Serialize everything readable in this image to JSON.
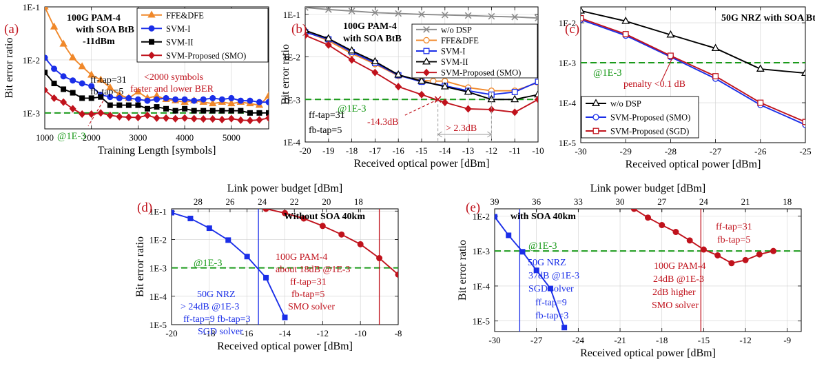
{
  "colors": {
    "red": "#c0121c",
    "blue": "#1a2ee8",
    "black": "#000000",
    "orange": "#f0882a",
    "gray": "#8c8c8c",
    "green": "#1a9a1a"
  },
  "chart_data": [
    {
      "id": "a",
      "type": "line",
      "panel_label": "(a)",
      "xlabel": "Training Length [symbols]",
      "ylabel": "Bit error ratio",
      "xlim": [
        1000,
        5800
      ],
      "ylim": [
        0.0005,
        0.1
      ],
      "yscale": "log",
      "xticks": [
        1000,
        2000,
        3000,
        4000,
        5000
      ],
      "yticks": [
        {
          "v": 0.1,
          "label": "1E-1"
        },
        {
          "v": 0.01,
          "label": "1E-2"
        },
        {
          "v": 0.001,
          "label": "1E-3"
        }
      ],
      "legend_position": "top-right",
      "series": [
        {
          "name": "FFE&DFE",
          "color": "#f0882a",
          "marker": "tri",
          "x": [
            1000,
            1200,
            1400,
            1600,
            1800,
            2000,
            2200,
            2400,
            2600,
            2800,
            3000,
            3200,
            3400,
            3600,
            3800,
            4000,
            4200,
            4400,
            4600,
            4800,
            5000,
            5200,
            5400,
            5600,
            5800
          ],
          "y": [
            0.1,
            0.042,
            0.02,
            0.011,
            0.0075,
            0.0052,
            0.0042,
            0.003,
            0.0022,
            0.0019,
            0.0025,
            0.0019,
            0.0021,
            0.0018,
            0.0017,
            0.0016,
            0.0017,
            0.0016,
            0.0015,
            0.0016,
            0.0015,
            0.0016,
            0.0015,
            0.0014,
            0.0021
          ]
        },
        {
          "name": "SVM-I",
          "color": "#1a2ee8",
          "marker": "circle",
          "x": [
            1000,
            1200,
            1400,
            1600,
            1800,
            2000,
            2200,
            2400,
            2600,
            2800,
            3000,
            3200,
            3400,
            3600,
            3800,
            4000,
            4200,
            4400,
            4600,
            4800,
            5000,
            5200,
            5400,
            5600,
            5800
          ],
          "y": [
            0.011,
            0.0068,
            0.0049,
            0.0041,
            0.0036,
            0.0032,
            0.0022,
            0.002,
            0.0019,
            0.0019,
            0.0018,
            0.0017,
            0.0018,
            0.0019,
            0.0018,
            0.0018,
            0.0017,
            0.0018,
            0.0019,
            0.0018,
            0.0019,
            0.0017,
            0.0017,
            0.0016,
            0.0016
          ]
        },
        {
          "name": "SVM-II",
          "color": "#000000",
          "marker": "square",
          "x": [
            1000,
            1200,
            1400,
            1600,
            1800,
            2000,
            2200,
            2400,
            2600,
            2800,
            3000,
            3200,
            3400,
            3600,
            3800,
            4000,
            4200,
            4400,
            4600,
            4800,
            5000,
            5200,
            5400,
            5600,
            5800
          ],
          "y": [
            0.0058,
            0.0036,
            0.0028,
            0.0024,
            0.0019,
            0.0019,
            0.002,
            0.0014,
            0.0014,
            0.0014,
            0.0014,
            0.0012,
            0.0013,
            0.0012,
            0.0011,
            0.0012,
            0.0011,
            0.0011,
            0.0011,
            0.0011,
            0.0011,
            0.0011,
            0.001,
            0.001,
            0.001
          ]
        },
        {
          "name": "SVM-Proposed (SMO)",
          "color": "#c0121c",
          "marker": "diamond",
          "x": [
            1000,
            1200,
            1400,
            1600,
            1800,
            2000,
            2200,
            2400,
            2600,
            2800,
            3000,
            3200,
            3400,
            3600,
            3800,
            4000,
            4200,
            4400,
            4600,
            4800,
            5000,
            5200,
            5400,
            5600,
            5800
          ],
          "y": [
            0.0027,
            0.0019,
            0.0016,
            0.0012,
            0.00095,
            0.00095,
            0.001,
            0.0009,
            0.00085,
            0.00083,
            0.00082,
            0.0009,
            0.0008,
            0.0008,
            0.00078,
            0.0008,
            0.00078,
            0.00077,
            0.00077,
            0.00075,
            0.00078,
            0.00073,
            0.00072,
            0.00074,
            0.0008
          ]
        }
      ],
      "threshold": {
        "y": 0.001,
        "label": "@1E-3"
      },
      "annotations": [
        {
          "text": "100G PAM-4",
          "color": "#000",
          "bold": true
        },
        {
          "text": "with SOA BtB",
          "color": "#000",
          "bold": true
        },
        {
          "text": "-11dBm",
          "color": "#000",
          "bold": true
        },
        {
          "text": "ff-tap=31",
          "color": "#000"
        },
        {
          "text": "fb-tap=5",
          "color": "#000"
        },
        {
          "text": "<2000 symbols",
          "color": "#c0121c"
        },
        {
          "text": "faster  and lower BER",
          "color": "#c0121c"
        }
      ]
    },
    {
      "id": "b",
      "type": "line",
      "panel_label": "(b)",
      "xlabel": "Received optical power [dBm]",
      "ylabel": "Bit error ratio",
      "xlim": [
        -20,
        -10
      ],
      "ylim": [
        0.0001,
        0.15
      ],
      "yscale": "log",
      "xticks": [
        -20,
        -19,
        -18,
        -17,
        -16,
        -15,
        -14,
        -13,
        -12,
        -11,
        -10
      ],
      "yticks": [
        {
          "v": 0.1,
          "label": "1E-1"
        },
        {
          "v": 0.01,
          "label": "1E-2"
        },
        {
          "v": 0.001,
          "label": "1E-3"
        },
        {
          "v": 0.0001,
          "label": "1E-4"
        }
      ],
      "legend_position": "top-right",
      "series": [
        {
          "name": "w/o DSP",
          "color": "#8c8c8c",
          "marker": "x",
          "x": [
            -20,
            -19,
            -18,
            -17,
            -16,
            -15,
            -14,
            -13,
            -12,
            -11,
            -10
          ],
          "y": [
            0.145,
            0.13,
            0.12,
            0.11,
            0.105,
            0.1,
            0.097,
            0.094,
            0.09,
            0.087,
            0.082
          ]
        },
        {
          "name": "FFE&DFE",
          "color": "#f0882a",
          "marker": "circle_open",
          "x": [
            -20,
            -19,
            -18,
            -17,
            -16,
            -15,
            -14.5,
            -14,
            -13,
            -12,
            -11,
            -10
          ],
          "y": [
            0.04,
            0.024,
            0.012,
            0.0068,
            0.0036,
            0.0028,
            0.0027,
            0.0027,
            0.0019,
            0.0016,
            0.0016,
            0.0025
          ]
        },
        {
          "name": "SVM-I",
          "color": "#1a2ee8",
          "marker": "square_open",
          "x": [
            -20,
            -19,
            -18,
            -17,
            -16,
            -15,
            -14,
            -13,
            -12,
            -11,
            -10
          ],
          "y": [
            0.038,
            0.026,
            0.013,
            0.0072,
            0.0037,
            0.0026,
            0.0021,
            0.0016,
            0.0013,
            0.0015,
            0.0026
          ]
        },
        {
          "name": "SVM-II",
          "color": "#000000",
          "marker": "tri_open",
          "x": [
            -20,
            -19,
            -18,
            -17,
            -16,
            -15,
            -14,
            -13,
            -12,
            -11,
            -10
          ],
          "y": [
            0.042,
            0.027,
            0.014,
            0.0078,
            0.0038,
            0.0027,
            0.002,
            0.0015,
            0.001,
            0.001,
            0.0013
          ]
        },
        {
          "name": "SVM-Proposed (SMO)",
          "color": "#c0121c",
          "marker": "diamond",
          "x": [
            -20,
            -19,
            -18,
            -17,
            -16,
            -15,
            -14,
            -13,
            -12,
            -11,
            -10
          ],
          "y": [
            0.032,
            0.019,
            0.0085,
            0.0043,
            0.002,
            0.0013,
            0.00085,
            0.0006,
            0.00058,
            0.0005,
            0.001
          ]
        }
      ],
      "threshold": {
        "y": 0.001,
        "label": "@1E-3"
      },
      "annotations": [
        {
          "text": "100G PAM-4",
          "color": "#000",
          "bold": true
        },
        {
          "text": "with SOA BtB",
          "color": "#000",
          "bold": true
        },
        {
          "text": "ff-tap=31",
          "color": "#000"
        },
        {
          "text": "fb-tap=5",
          "color": "#000"
        },
        {
          "text": "-14.3dB",
          "color": "#c0121c"
        },
        {
          "text": "> 2.3dB",
          "color": "#c0121c"
        }
      ]
    },
    {
      "id": "c",
      "type": "line",
      "panel_label": "(c)",
      "xlabel": "Received optical power [dBm]",
      "ylabel": "",
      "xlim": [
        -30,
        -25
      ],
      "ylim": [
        1e-05,
        0.025
      ],
      "yscale": "log",
      "xticks": [
        -30,
        -29,
        -28,
        -27,
        -26,
        -25
      ],
      "yticks": [
        {
          "v": 0.01,
          "label": "1E-2"
        },
        {
          "v": 0.001,
          "label": "1E-3"
        },
        {
          "v": 0.0001,
          "label": "1E-4"
        },
        {
          "v": 1e-05,
          "label": "1E-5"
        }
      ],
      "legend_position": "bottom-left",
      "series": [
        {
          "name": "w/o DSP",
          "color": "#000000",
          "marker": "tri_open",
          "x": [
            -30,
            -29,
            -28,
            -27,
            -26,
            -25
          ],
          "y": [
            0.02,
            0.011,
            0.005,
            0.0023,
            0.0007,
            0.00055
          ]
        },
        {
          "name": "SVM-Proposed (SMO)",
          "color": "#1a2ee8",
          "marker": "circle_open",
          "x": [
            -30,
            -29,
            -28,
            -27,
            -26,
            -25
          ],
          "y": [
            0.012,
            0.0048,
            0.0014,
            0.0004,
            8.8e-05,
            2.8e-05
          ]
        },
        {
          "name": "SVM-Proposed (SGD)",
          "color": "#c0121c",
          "marker": "square_open",
          "x": [
            -30,
            -29,
            -28,
            -27,
            -26,
            -25
          ],
          "y": [
            0.013,
            0.0052,
            0.0015,
            0.00046,
            0.0001,
            3.3e-05
          ]
        }
      ],
      "threshold": {
        "y": 0.001,
        "label": "@1E-3"
      },
      "annotations": [
        {
          "text": "50G NRZ with SOA BtB",
          "color": "#000",
          "bold": true
        },
        {
          "text": "penalty <0.1 dB",
          "color": "#c0121c"
        }
      ]
    },
    {
      "id": "d",
      "type": "line",
      "panel_label": "(d)",
      "xlabel": "Received optical power [dBm]",
      "ylabel": "Bit error ratio",
      "x2label": "Link power budget [dBm]",
      "xlim": [
        -20,
        -8
      ],
      "ylim": [
        1e-05,
        0.12
      ],
      "yscale": "log",
      "xticks": [
        -20,
        -18,
        -16,
        -14,
        -12,
        -10,
        -8
      ],
      "x2ticks": [
        {
          "label": "28",
          "x": -18.6
        },
        {
          "label": "26",
          "x": -16.9
        },
        {
          "label": "24",
          "x": -15.2
        },
        {
          "label": "22",
          "x": -13.5
        },
        {
          "label": "20",
          "x": -11.8
        },
        {
          "label": "18",
          "x": -10.1
        }
      ],
      "yticks": [
        {
          "v": 0.1,
          "label": "1E-1"
        },
        {
          "v": 0.01,
          "label": "1E-2"
        },
        {
          "v": 0.001,
          "label": "1E-3"
        },
        {
          "v": 0.0001,
          "label": "1E-4"
        },
        {
          "v": 1e-05,
          "label": "1E-5"
        }
      ],
      "series": [
        {
          "name": "50G NRZ",
          "color": "#1a2ee8",
          "marker": "square",
          "x": [
            -20,
            -19,
            -18,
            -17,
            -16,
            -15,
            -14
          ],
          "y": [
            0.088,
            0.055,
            0.025,
            0.0095,
            0.0025,
            0.00045,
            1.8e-05
          ]
        },
        {
          "name": "100G PAM-4",
          "color": "#c0121c",
          "marker": "circle",
          "x": [
            -15,
            -14,
            -13,
            -12,
            -11,
            -10,
            -9,
            -8
          ],
          "y": [
            0.12,
            0.085,
            0.055,
            0.03,
            0.015,
            0.0068,
            0.0022,
            0.00058
          ]
        }
      ],
      "vlines": [
        {
          "x": -15.4,
          "color": "#1a2ee8"
        },
        {
          "x": -9.0,
          "color": "#c0121c"
        }
      ],
      "threshold": {
        "y": 0.001,
        "label": "@1E-3"
      },
      "annotations": [
        {
          "text": "Without SOA 40km",
          "color": "#000",
          "bold": true
        },
        {
          "text": "50G NRZ",
          "color": "#1a2ee8"
        },
        {
          "text": "> 24dB @1E-3",
          "color": "#1a2ee8"
        },
        {
          "text": "ff-tap=9 fb-tap=3",
          "color": "#1a2ee8"
        },
        {
          "text": "SGD solver",
          "color": "#1a2ee8"
        },
        {
          "text": "100G PAM-4",
          "color": "#c0121c"
        },
        {
          "text": "about 18dB @1E-3",
          "color": "#c0121c"
        },
        {
          "text": "ff-tap=31",
          "color": "#c0121c"
        },
        {
          "text": "fb-tap=5",
          "color": "#c0121c"
        },
        {
          "text": "SMO solver",
          "color": "#c0121c"
        }
      ]
    },
    {
      "id": "e",
      "type": "line",
      "panel_label": "(e)",
      "xlabel": "Received optical power [dBm]",
      "ylabel": "Bit error ratio",
      "x2label": "Link  power budget [dBm]",
      "xlim": [
        -30,
        -8
      ],
      "ylim": [
        5e-06,
        0.016
      ],
      "yscale": "log",
      "xticks": [
        -30,
        -27,
        -24,
        -21,
        -18,
        -15,
        -12,
        -9
      ],
      "x2ticks": [
        {
          "label": "39",
          "x": -30
        },
        {
          "label": "36",
          "x": -27
        },
        {
          "label": "33",
          "x": -24
        },
        {
          "label": "30",
          "x": -21
        },
        {
          "label": "27",
          "x": -18
        },
        {
          "label": "24",
          "x": -15
        },
        {
          "label": "21",
          "x": -12
        },
        {
          "label": "18",
          "x": -9
        }
      ],
      "yticks": [
        {
          "v": 0.01,
          "label": "1E-2"
        },
        {
          "v": 0.001,
          "label": "1E-3"
        },
        {
          "v": 0.0001,
          "label": "1E-4"
        },
        {
          "v": 1e-05,
          "label": "1E-5"
        }
      ],
      "series": [
        {
          "name": "50G NRZ",
          "color": "#1a2ee8",
          "marker": "square",
          "x": [
            -30,
            -29,
            -28,
            -27,
            -26,
            -25
          ],
          "y": [
            0.0095,
            0.0028,
            0.00095,
            0.00028,
            8.5e-05,
            6.5e-06
          ]
        },
        {
          "name": "100G PAM-4",
          "color": "#c0121c",
          "marker": "circle",
          "x": [
            -20,
            -19,
            -18,
            -17,
            -16,
            -15,
            -14,
            -13,
            -12,
            -11,
            -10
          ],
          "y": [
            0.016,
            0.009,
            0.0055,
            0.0035,
            0.002,
            0.0011,
            0.00075,
            0.00045,
            0.00055,
            0.0008,
            0.001
          ]
        }
      ],
      "vlines": [
        {
          "x": -28.2,
          "color": "#1a2ee8"
        },
        {
          "x": -15.2,
          "color": "#c0121c"
        }
      ],
      "threshold": {
        "y": 0.001,
        "label": "@1E-3"
      },
      "annotations": [
        {
          "text": "with SOA 40km",
          "color": "#000",
          "bold": true
        },
        {
          "text": "50G NRZ",
          "color": "#1a2ee8"
        },
        {
          "text": "37dB @1E-3",
          "color": "#1a2ee8"
        },
        {
          "text": "SGD solver",
          "color": "#1a2ee8"
        },
        {
          "text": "ff-tap=9",
          "color": "#1a2ee8"
        },
        {
          "text": "fb-tap=3",
          "color": "#1a2ee8"
        },
        {
          "text": "ff-tap=31",
          "color": "#c0121c"
        },
        {
          "text": "fb-tap=5",
          "color": "#c0121c"
        },
        {
          "text": "100G PAM-4",
          "color": "#c0121c"
        },
        {
          "text": "24dB @1E-3",
          "color": "#c0121c"
        },
        {
          "text": "2dB higher",
          "color": "#c0121c"
        },
        {
          "text": "SMO solver",
          "color": "#c0121c"
        }
      ]
    }
  ]
}
